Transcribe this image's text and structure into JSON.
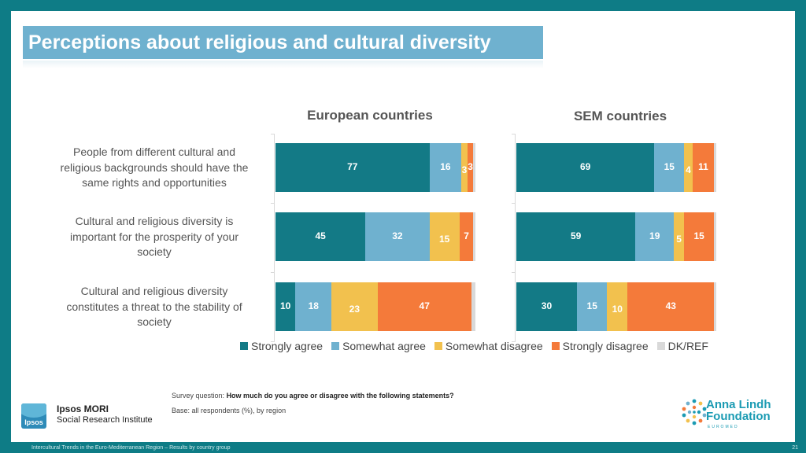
{
  "title": "Perceptions about religious and cultural diversity",
  "panels": [
    {
      "heading": "European countries"
    },
    {
      "heading": "SEM countries"
    }
  ],
  "colors": {
    "strongly_agree": "#137a86",
    "somewhat_agree": "#6fb1cf",
    "somewhat_disagree": "#f2c14e",
    "strongly_disagree": "#f47a3a",
    "dk_ref": "#d9d9d9"
  },
  "chart_data": [
    {
      "type": "bar",
      "orientation": "horizontal",
      "stacked": true,
      "title": "European countries",
      "categories": [
        "People from different cultural and religious backgrounds should have the same rights and opportunities",
        "Cultural and religious diversity is important for the prosperity of your society",
        "Cultural and religious diversity constitutes a threat to the stability of society"
      ],
      "series": [
        {
          "name": "Strongly agree",
          "values": [
            77,
            45,
            10
          ]
        },
        {
          "name": "Somewhat agree",
          "values": [
            16,
            32,
            18
          ]
        },
        {
          "name": "Somewhat disagree",
          "values": [
            3,
            15,
            23
          ]
        },
        {
          "name": "Strongly disagree",
          "values": [
            3,
            7,
            47
          ]
        },
        {
          "name": "DK/REF",
          "values": [
            1,
            1,
            2
          ]
        }
      ],
      "xlim": [
        0,
        100
      ]
    },
    {
      "type": "bar",
      "orientation": "horizontal",
      "stacked": true,
      "title": "SEM countries",
      "categories": [
        "People from different cultural and religious backgrounds should have the same rights and opportunities",
        "Cultural and religious diversity is important for the prosperity of your society",
        "Cultural and religious diversity constitutes a threat to the stability of society"
      ],
      "series": [
        {
          "name": "Strongly agree",
          "values": [
            69,
            59,
            30
          ]
        },
        {
          "name": "Somewhat agree",
          "values": [
            15,
            19,
            15
          ]
        },
        {
          "name": "Somewhat disagree",
          "values": [
            4,
            5,
            10
          ]
        },
        {
          "name": "Strongly disagree",
          "values": [
            11,
            15,
            43
          ]
        },
        {
          "name": "DK/REF",
          "values": [
            1,
            1,
            1
          ]
        }
      ],
      "xlim": [
        0,
        100
      ]
    }
  ],
  "row_labels": [
    "People from different cultural and religious backgrounds should have the same rights and opportunities",
    "Cultural and religious diversity is important for the prosperity of your society",
    "Cultural and religious diversity constitutes a threat to the stability of society"
  ],
  "legend": [
    {
      "label": "Strongly agree",
      "color": "#137a86"
    },
    {
      "label": "Somewhat agree",
      "color": "#6fb1cf"
    },
    {
      "label": "Somewhat disagree",
      "color": "#f2c14e"
    },
    {
      "label": "Strongly disagree",
      "color": "#f47a3a"
    },
    {
      "label": "DK/REF",
      "color": "#d9d9d9"
    }
  ],
  "survey_question_prefix": "Survey question:",
  "survey_question": "How much do you agree or disagree with the following statements?",
  "base": "Base: all respondents (%), by region",
  "ipsos": {
    "logo_text": "Ipsos",
    "name": "Ipsos MORI",
    "sub": "Social Research Institute"
  },
  "alf": {
    "line1": "Anna Lindh",
    "line2": "Foundation",
    "sub": "EUROMED"
  },
  "footer": "Intercultural Trends in the Euro-Mediterranean Region – Results by country group",
  "page_number": "21"
}
